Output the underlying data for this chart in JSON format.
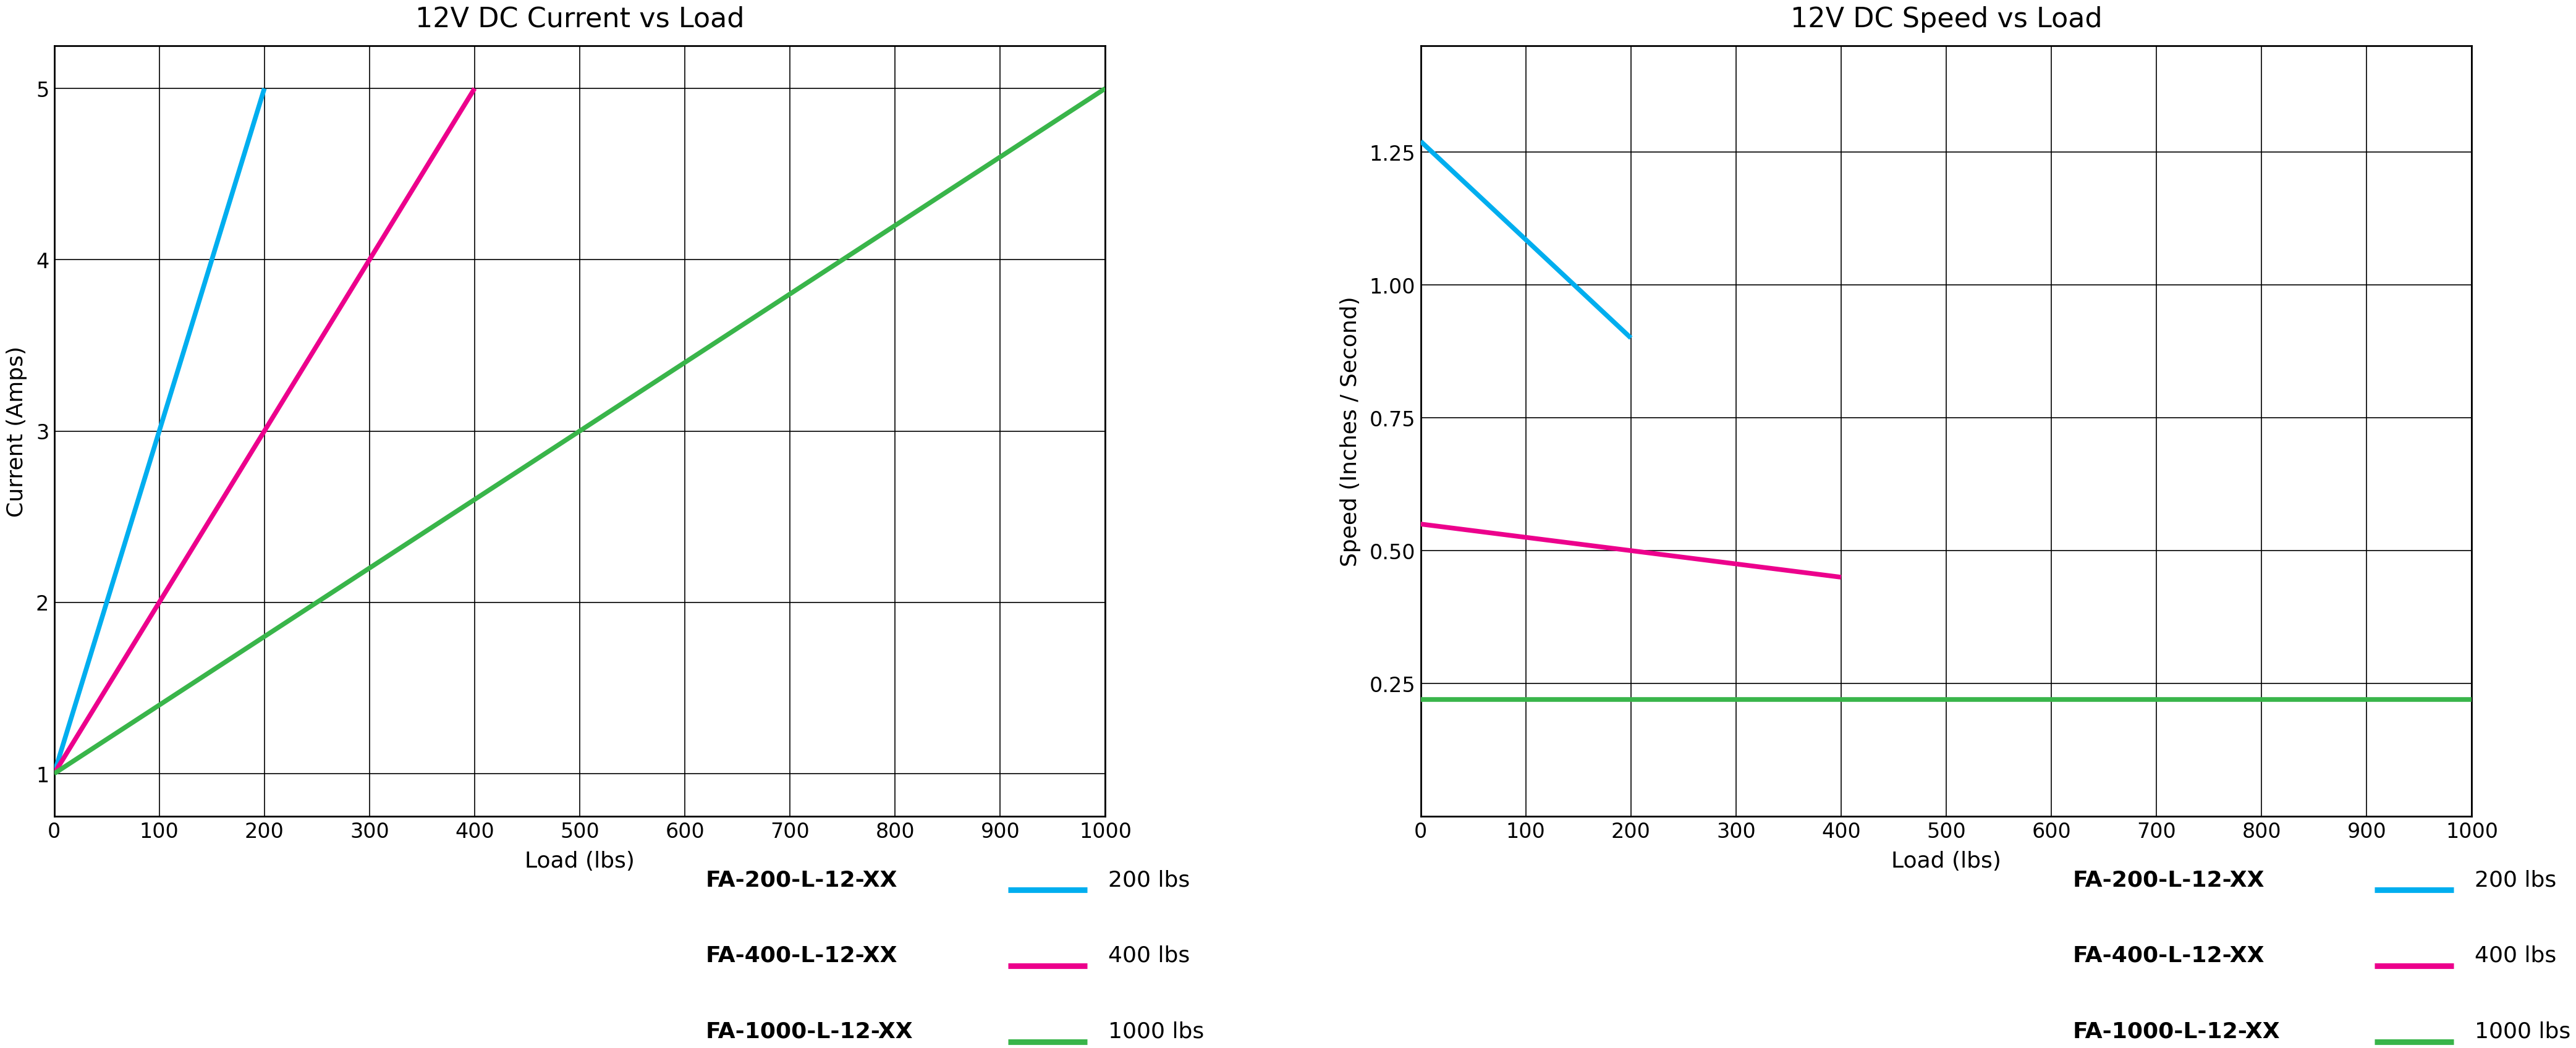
{
  "chart1": {
    "title": "12V DC Current vs Load",
    "xlabel": "Load (lbs)",
    "ylabel": "Current (Amps)",
    "xlim": [
      0,
      1000
    ],
    "ylim": [
      0.75,
      5.25
    ],
    "yticks": [
      1.0,
      2.0,
      3.0,
      4.0,
      5.0
    ],
    "xticks": [
      0,
      100,
      200,
      300,
      400,
      500,
      600,
      700,
      800,
      900,
      1000
    ],
    "series": [
      {
        "short_label": "200 lbs",
        "legend_label": "FA-200-L-12-XX",
        "color": "#00AEEF",
        "x": [
          0,
          200
        ],
        "y": [
          1.0,
          5.0
        ]
      },
      {
        "short_label": "400 lbs",
        "legend_label": "FA-400-L-12-XX",
        "color": "#EC008C",
        "x": [
          0,
          400
        ],
        "y": [
          1.0,
          5.0
        ]
      },
      {
        "short_label": "1000 lbs",
        "legend_label": "FA-1000-L-12-XX",
        "color": "#39B54A",
        "x": [
          0,
          1000
        ],
        "y": [
          1.0,
          5.0
        ]
      }
    ]
  },
  "chart2": {
    "title": "12V DC Speed vs Load",
    "xlabel": "Load (lbs)",
    "ylabel": "Speed (Inches / Second)",
    "xlim": [
      0,
      1000
    ],
    "ylim": [
      0.0,
      1.45
    ],
    "yticks": [
      0.25,
      0.5,
      0.75,
      1.0,
      1.25
    ],
    "xticks": [
      0,
      100,
      200,
      300,
      400,
      500,
      600,
      700,
      800,
      900,
      1000
    ],
    "series": [
      {
        "short_label": "200 lbs",
        "legend_label": "FA-200-L-12-XX",
        "color": "#00AEEF",
        "x": [
          0,
          200
        ],
        "y": [
          1.27,
          0.9
        ]
      },
      {
        "short_label": "400 lbs",
        "legend_label": "FA-400-L-12-XX",
        "color": "#EC008C",
        "x": [
          0,
          400
        ],
        "y": [
          0.55,
          0.45
        ]
      },
      {
        "short_label": "1000 lbs",
        "legend_label": "FA-1000-L-12-XX",
        "color": "#39B54A",
        "x": [
          0,
          1000
        ],
        "y": [
          0.22,
          0.22
        ]
      }
    ]
  },
  "background_color": "#FFFFFF",
  "title_fontsize": 32,
  "label_fontsize": 26,
  "tick_fontsize": 24,
  "legend_model_fontsize": 26,
  "legend_lbs_fontsize": 26,
  "line_width": 5.5
}
